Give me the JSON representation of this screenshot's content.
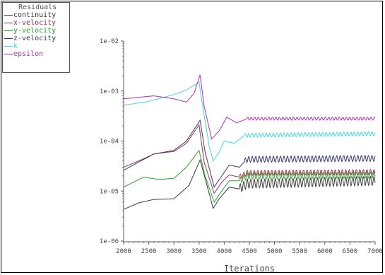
{
  "chart_data": {
    "type": "line",
    "title": "",
    "xlabel": "Iterations",
    "ylabel": "",
    "y_scale": "log",
    "xlim": [
      2000,
      7000
    ],
    "ylim": [
      1e-06,
      0.01
    ],
    "x_ticks": [
      "2000",
      "2500",
      "3000",
      "3500",
      "4000",
      "4500",
      "5000",
      "5500",
      "6000",
      "6500",
      "7000"
    ],
    "y_ticks": [
      "1e-06",
      "1e-05",
      "1e-04",
      "1e-03",
      "1e-02"
    ],
    "legend": {
      "title": "Residuals",
      "position": "top-left"
    },
    "series": [
      {
        "name": "continuity",
        "color": "#3a3a3a",
        "points": [
          [
            2000,
            4.3e-06
          ],
          [
            2300,
            5.8e-06
          ],
          [
            2600,
            6.8e-06
          ],
          [
            3000,
            7e-06
          ],
          [
            3300,
            1.3e-05
          ],
          [
            3520,
            4.2e-05
          ],
          [
            3620,
            1.8e-05
          ],
          [
            3780,
            4.5e-06
          ],
          [
            3900,
            7e-06
          ],
          [
            4100,
            1.2e-05
          ],
          [
            4300,
            1.1e-05
          ],
          [
            4450,
            1.4e-05
          ],
          [
            7000,
            1.6e-05
          ]
        ],
        "osc_start": 4300,
        "osc_amp": 0.09,
        "osc_period": 70
      },
      {
        "name": "x-velocity",
        "color": "#a03050",
        "points": [
          [
            2000,
            3e-05
          ],
          [
            2300,
            4e-05
          ],
          [
            2600,
            5.5e-05
          ],
          [
            3000,
            6.2e-05
          ],
          [
            3250,
            9e-05
          ],
          [
            3500,
            0.00021
          ],
          [
            3600,
            3.8e-05
          ],
          [
            3800,
            9e-06
          ],
          [
            3950,
            1.5e-05
          ],
          [
            4100,
            2.1e-05
          ],
          [
            4300,
            1.9e-05
          ],
          [
            4450,
            2.3e-05
          ],
          [
            7000,
            2.4e-05
          ]
        ],
        "osc_start": 4300,
        "osc_amp": 0.05,
        "osc_period": 70
      },
      {
        "name": "y-velocity",
        "color": "#2ea02e",
        "points": [
          [
            2000,
            1.2e-05
          ],
          [
            2250,
            1.6e-05
          ],
          [
            2400,
            1.9e-05
          ],
          [
            2700,
            1.7e-05
          ],
          [
            3000,
            1.8e-05
          ],
          [
            3250,
            3e-05
          ],
          [
            3500,
            6.5e-05
          ],
          [
            3620,
            2e-05
          ],
          [
            3800,
            6e-06
          ],
          [
            3950,
            1e-05
          ],
          [
            4100,
            1.6e-05
          ],
          [
            4300,
            1.6e-05
          ],
          [
            4450,
            2e-05
          ],
          [
            7000,
            2.1e-05
          ]
        ],
        "osc_start": 4300,
        "osc_amp": 0.06,
        "osc_period": 70
      },
      {
        "name": "z-velocity",
        "color": "#383870",
        "points": [
          [
            2000,
            2.6e-05
          ],
          [
            2300,
            3.8e-05
          ],
          [
            2600,
            5.5e-05
          ],
          [
            3000,
            6.5e-05
          ],
          [
            3250,
            0.0001
          ],
          [
            3520,
            0.00026
          ],
          [
            3620,
            6e-05
          ],
          [
            3800,
            1.2e-05
          ],
          [
            3950,
            2e-05
          ],
          [
            4100,
            3.3e-05
          ],
          [
            4300,
            3e-05
          ],
          [
            4450,
            4.3e-05
          ],
          [
            7000,
            4.5e-05
          ]
        ],
        "osc_start": 4400,
        "osc_amp": 0.06,
        "osc_period": 70
      },
      {
        "name": "k",
        "color": "#40d8d8",
        "points": [
          [
            2000,
            0.00052
          ],
          [
            2500,
            0.00062
          ],
          [
            3000,
            0.00085
          ],
          [
            3250,
            0.00105
          ],
          [
            3500,
            0.0015
          ],
          [
            3560,
            0.0006
          ],
          [
            3700,
            8e-05
          ],
          [
            3780,
            4e-05
          ],
          [
            3900,
            6e-05
          ],
          [
            4000,
            0.0001
          ],
          [
            4200,
            9e-05
          ],
          [
            4400,
            0.00013
          ],
          [
            7000,
            0.00014
          ]
        ],
        "osc_start": 4400,
        "osc_amp": 0.04,
        "osc_period": 70
      },
      {
        "name": "epsilon",
        "color": "#b030b0",
        "points": [
          [
            2000,
            0.0007
          ],
          [
            2300,
            0.00075
          ],
          [
            2600,
            0.0008
          ],
          [
            3000,
            0.0007
          ],
          [
            3250,
            0.0006
          ],
          [
            3400,
            0.0009
          ],
          [
            3520,
            0.0021
          ],
          [
            3600,
            0.0005
          ],
          [
            3750,
            0.00011
          ],
          [
            3900,
            0.00016
          ],
          [
            4050,
            0.0003
          ],
          [
            4250,
            0.00023
          ],
          [
            4450,
            0.00028
          ],
          [
            7000,
            0.00028
          ]
        ],
        "osc_start": 4450,
        "osc_amp": 0.03,
        "osc_period": 70
      }
    ]
  }
}
